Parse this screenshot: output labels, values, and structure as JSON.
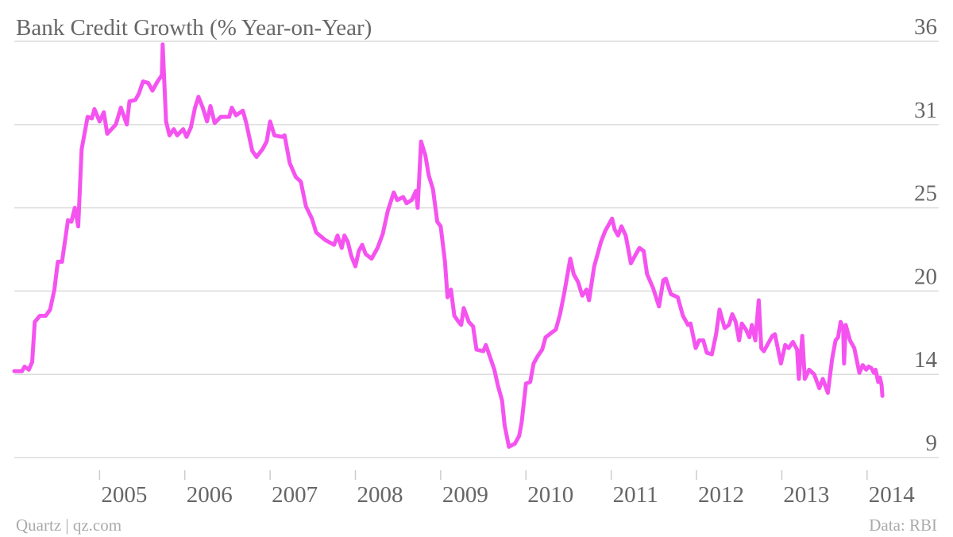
{
  "chart_data": {
    "type": "line",
    "title": "Bank Credit Growth (% Year-on-Year)",
    "source": "Data: RBI",
    "credit": "Quartz | qz.com",
    "xlim": [
      2004,
      2014.84
    ],
    "xticks": [
      2005,
      2006,
      2007,
      2008,
      2009,
      2010,
      2011,
      2012,
      2013,
      2014
    ],
    "ylim": [
      9,
      36
    ],
    "yticks": [
      9,
      {
        "value": 14.4,
        "label": "14"
      },
      {
        "value": 19.8,
        "label": "20"
      },
      {
        "value": 25.2,
        "label": "25"
      },
      {
        "value": 30.6,
        "label": "31"
      },
      36
    ],
    "grid": true,
    "x": [
      2004.0,
      2004.09,
      2004.12,
      2004.17,
      2004.21,
      2004.24,
      2004.3,
      2004.37,
      2004.42,
      2004.47,
      2004.51,
      2004.56,
      2004.63,
      2004.67,
      2004.71,
      2004.75,
      2004.79,
      2004.86,
      2004.91,
      2004.94,
      2005.0,
      2005.05,
      2005.09,
      2005.19,
      2005.25,
      2005.32,
      2005.35,
      2005.42,
      2005.46,
      2005.51,
      2005.57,
      2005.62,
      2005.68,
      2005.73,
      2005.74,
      2005.78,
      2005.82,
      2005.87,
      2005.91,
      2005.98,
      2006.02,
      2006.07,
      2006.12,
      2006.16,
      2006.21,
      2006.26,
      2006.3,
      2006.35,
      2006.42,
      2006.52,
      2006.55,
      2006.6,
      2006.68,
      2006.72,
      2006.79,
      2006.84,
      2006.91,
      2006.96,
      2007.0,
      2007.05,
      2007.14,
      2007.17,
      2007.23,
      2007.3,
      2007.36,
      2007.42,
      2007.49,
      2007.54,
      2007.65,
      2007.75,
      2007.79,
      2007.84,
      2007.87,
      2007.91,
      2007.95,
      2008.0,
      2008.04,
      2008.08,
      2008.12,
      2008.19,
      2008.26,
      2008.32,
      2008.38,
      2008.45,
      2008.49,
      2008.56,
      2008.6,
      2008.66,
      2008.71,
      2008.73,
      2008.77,
      2008.82,
      2008.86,
      2008.91,
      2008.96,
      2009.0,
      2009.05,
      2009.08,
      2009.12,
      2009.16,
      2009.21,
      2009.24,
      2009.27,
      2009.33,
      2009.38,
      2009.42,
      2009.5,
      2009.53,
      2009.58,
      2009.63,
      2009.67,
      2009.72,
      2009.75,
      2009.8,
      2009.87,
      2009.92,
      2009.95,
      2010.0,
      2010.05,
      2010.09,
      2010.14,
      2010.19,
      2010.23,
      2010.3,
      2010.35,
      2010.4,
      2010.45,
      2010.52,
      2010.56,
      2010.61,
      2010.66,
      2010.71,
      2010.74,
      2010.8,
      2010.88,
      2010.93,
      2011.01,
      2011.04,
      2011.08,
      2011.12,
      2011.17,
      2011.23,
      2011.28,
      2011.33,
      2011.38,
      2011.42,
      2011.49,
      2011.56,
      2011.61,
      2011.64,
      2011.7,
      2011.78,
      2011.84,
      2011.9,
      2011.93,
      2011.99,
      2012.03,
      2012.08,
      2012.12,
      2012.18,
      2012.23,
      2012.27,
      2012.33,
      2012.38,
      2012.42,
      2012.46,
      2012.5,
      2012.53,
      2012.58,
      2012.62,
      2012.65,
      2012.69,
      2012.73,
      2012.76,
      2012.79,
      2012.84,
      2012.89,
      2012.92,
      2012.99,
      2013.04,
      2013.08,
      2013.13,
      2013.18,
      2013.2,
      2013.24,
      2013.27,
      2013.32,
      2013.38,
      2013.44,
      2013.48,
      2013.54,
      2013.59,
      2013.63,
      2013.66,
      2013.69,
      2013.72,
      2013.73,
      2013.75,
      2013.8,
      2013.85,
      2013.91,
      2013.95,
      2013.99,
      2014.02,
      2014.05,
      2014.08,
      2014.1,
      2014.13,
      2014.15,
      2014.17,
      2014.18
    ],
    "series": [
      {
        "name": "Bank credit growth",
        "color": "#f553f0",
        "values": [
          14.6,
          14.6,
          14.9,
          14.7,
          15.2,
          17.8,
          18.2,
          18.2,
          18.6,
          19.9,
          21.7,
          21.7,
          24.4,
          24.3,
          25.2,
          24.0,
          29.0,
          31.1,
          31.0,
          31.6,
          30.8,
          31.4,
          30.0,
          30.6,
          31.7,
          30.6,
          32.1,
          32.2,
          32.6,
          33.4,
          33.3,
          32.8,
          33.4,
          33.8,
          35.8,
          30.8,
          29.9,
          30.3,
          29.9,
          30.3,
          29.8,
          30.4,
          31.7,
          32.4,
          31.7,
          30.8,
          31.8,
          30.7,
          31.1,
          31.1,
          31.7,
          31.2,
          31.5,
          30.7,
          28.9,
          28.5,
          29.0,
          29.5,
          30.8,
          29.9,
          29.8,
          29.9,
          28.1,
          27.2,
          26.9,
          25.3,
          24.5,
          23.6,
          23.1,
          22.8,
          23.4,
          22.6,
          23.4,
          23.0,
          22.1,
          21.4,
          22.4,
          22.8,
          22.2,
          21.9,
          22.6,
          23.5,
          25.0,
          26.2,
          25.7,
          25.9,
          25.5,
          25.7,
          26.3,
          25.2,
          29.5,
          28.6,
          27.3,
          26.4,
          24.3,
          24.0,
          21.7,
          19.4,
          19.9,
          18.2,
          17.8,
          17.6,
          18.7,
          17.8,
          17.5,
          16.0,
          15.9,
          16.3,
          15.5,
          14.7,
          13.7,
          12.7,
          11.1,
          9.7,
          9.9,
          10.4,
          11.3,
          13.8,
          13.9,
          15.1,
          15.6,
          16.0,
          16.8,
          17.1,
          17.3,
          18.3,
          19.7,
          21.9,
          20.9,
          20.4,
          19.5,
          19.9,
          19.2,
          21.4,
          23.0,
          23.7,
          24.5,
          23.8,
          23.4,
          24.0,
          23.4,
          21.6,
          22.1,
          22.6,
          22.4,
          20.9,
          20.0,
          18.8,
          20.5,
          20.6,
          19.6,
          19.4,
          18.2,
          17.6,
          17.7,
          16.1,
          16.6,
          16.6,
          15.8,
          15.7,
          17.0,
          18.6,
          17.4,
          17.6,
          18.3,
          17.8,
          16.6,
          17.7,
          17.3,
          16.8,
          17.6,
          16.6,
          19.2,
          16.1,
          15.9,
          16.4,
          16.9,
          17.0,
          15.1,
          16.3,
          16.1,
          16.5,
          16.0,
          14.1,
          16.9,
          14.1,
          14.7,
          14.4,
          13.5,
          14.1,
          13.2,
          15.4,
          16.6,
          16.8,
          17.8,
          17.4,
          15.1,
          17.6,
          16.6,
          16.1,
          14.5,
          15.0,
          14.7,
          14.9,
          14.8,
          14.5,
          14.7,
          13.9,
          14.2,
          13.7,
          13.0
        ]
      }
    ]
  }
}
